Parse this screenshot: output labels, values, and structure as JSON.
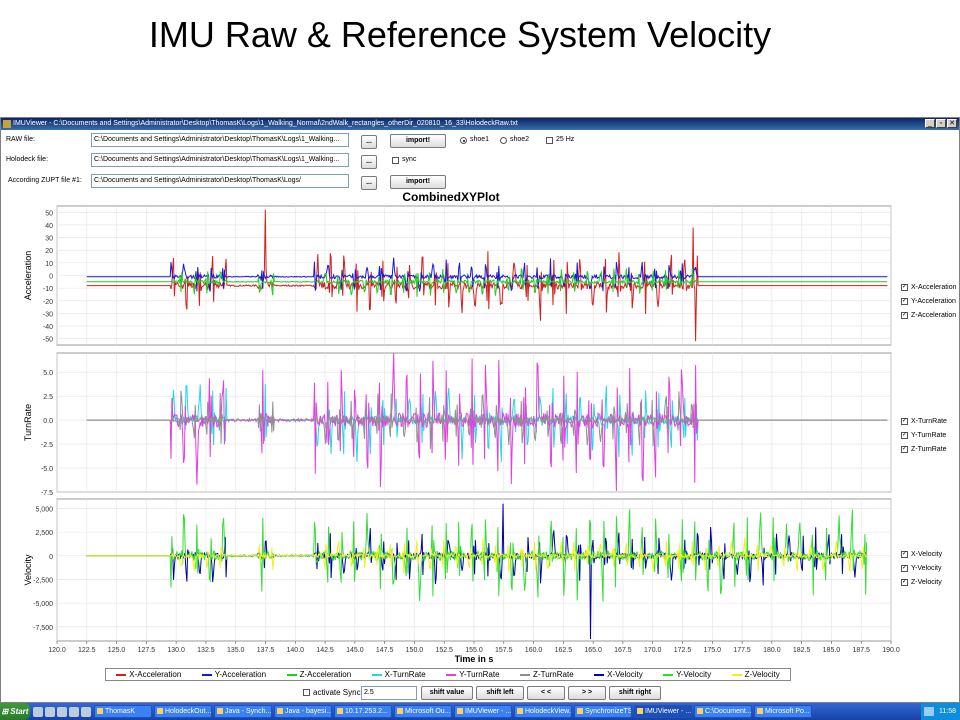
{
  "slide": {
    "title": "IMU Raw & Reference System Velocity"
  },
  "window": {
    "title": "IMUViewer - C:\\Documents and Settings\\Administrator\\Desktop\\ThomasK\\Logs\\1_Walking_Normal\\2ndWalk_rectangles_otherDir_020810_16_33\\HolodeckRaw.txt",
    "buttons": {
      "minimize": "_",
      "restore": "▫",
      "close": "✕"
    }
  },
  "controls": {
    "raw_label": "RAW file:",
    "raw_path": "C:\\Documents and Settings\\Administrator\\Desktop\\ThomasK\\Logs\\1_Walking...",
    "holodeck_label": "Holodeck file:",
    "holodeck_path": "C:\\Documents and Settings\\Administrator\\Desktop\\ThomasK\\Logs\\1_Walking...",
    "zupt_label": "According ZUPT file #1:",
    "zupt_path": "C:\\Documents and Settings\\Administrator\\Desktop\\ThomasK\\Logs/",
    "browse_label": "...",
    "import_label": "import!",
    "shoe1_label": "shoe1",
    "shoe2_label": "shoe2",
    "hz_label": "25 Hz",
    "sync_label": "sync"
  },
  "plot": {
    "title": "CombinedXYPlot",
    "xlabel": "Time in s",
    "x_ticks": [
      "120.0",
      "122.5",
      "125.0",
      "127.5",
      "130.0",
      "132.5",
      "135.0",
      "137.5",
      "140.0",
      "142.5",
      "145.0",
      "147.5",
      "150.0",
      "152.5",
      "155.0",
      "157.5",
      "160.0",
      "162.5",
      "165.0",
      "167.5",
      "170.0",
      "172.5",
      "175.0",
      "177.5",
      "180.0",
      "182.5",
      "185.0",
      "187.5",
      "190.0"
    ],
    "side_legends": [
      [
        "X-Acceleration",
        "Y-Acceleration",
        "Z-Acceleration"
      ],
      [
        "X-TurnRate",
        "Y-TurnRate",
        "Z-TurnRate"
      ],
      [
        "X-Velocity",
        "Y-Velocity",
        "Z-Velocity"
      ]
    ]
  },
  "chart_data": [
    {
      "type": "line",
      "ylabel": "Acceleration",
      "ylim": [
        -55,
        55
      ],
      "yticks": [
        "50",
        "40",
        "30",
        "20",
        "10",
        "0",
        "-10",
        "-20",
        "-30",
        "-40",
        "-50"
      ],
      "xlim": [
        120,
        190
      ],
      "series": [
        {
          "name": "X-Acceleration",
          "color": "#d22020",
          "baseline": -8,
          "amp": 22
        },
        {
          "name": "Y-Acceleration",
          "color": "#1a1acc",
          "baseline": -1,
          "amp": 12
        },
        {
          "name": "Z-Acceleration",
          "color": "#22cc22",
          "baseline": -5,
          "amp": 10
        }
      ],
      "active_range": [
        129.5,
        173.8
      ],
      "spikes": [
        {
          "x": 137.5,
          "y": 52
        },
        {
          "x": 173.4,
          "y": 38
        },
        {
          "x": 173.6,
          "y": -52
        }
      ]
    },
    {
      "type": "line",
      "ylabel": "TurnRate",
      "ylim": [
        -7.5,
        7.0
      ],
      "yticks": [
        "5.0",
        "2.5",
        "0.0",
        "-2.5",
        "-5.0",
        "-7.5"
      ],
      "xlim": [
        120,
        190
      ],
      "series": [
        {
          "name": "X-TurnRate",
          "color": "#20d8e0",
          "baseline": 0,
          "amp": 3.5
        },
        {
          "name": "Y-TurnRate",
          "color": "#e040e0",
          "baseline": 0,
          "amp": 6
        },
        {
          "name": "Z-TurnRate",
          "color": "#909090",
          "baseline": 0,
          "amp": 2.5
        }
      ],
      "active_range": [
        129.5,
        173.8
      ]
    },
    {
      "type": "line",
      "ylabel": "Velocity",
      "ylim": [
        -9000,
        6000
      ],
      "yticks": [
        "5,000",
        "2,500",
        "0",
        "-2,500",
        "-5,000",
        "-7,500"
      ],
      "xlim": [
        120,
        190
      ],
      "series": [
        {
          "name": "X-Velocity",
          "color": "#0000aa",
          "baseline": 0,
          "amp": 2500
        },
        {
          "name": "Y-Velocity",
          "color": "#33dd33",
          "baseline": 0,
          "amp": 4000
        },
        {
          "name": "Z-Velocity",
          "color": "#f0f020",
          "baseline": 0,
          "amp": 1500
        }
      ],
      "active_range": [
        129.5,
        188
      ],
      "spikes": [
        {
          "x": 164.8,
          "y": -8800
        },
        {
          "x": 157.4,
          "y": 5500
        }
      ]
    }
  ],
  "bottom_legend": [
    {
      "name": "X-Acceleration",
      "color": "#d22020"
    },
    {
      "name": "Y-Acceleration",
      "color": "#1a1acc"
    },
    {
      "name": "Z-Acceleration",
      "color": "#22cc22"
    },
    {
      "name": "X-TurnRate",
      "color": "#20d8e0"
    },
    {
      "name": "Y-TurnRate",
      "color": "#e040e0"
    },
    {
      "name": "Z-TurnRate",
      "color": "#909090"
    },
    {
      "name": "X-Velocity",
      "color": "#0000aa"
    },
    {
      "name": "Y-Velocity",
      "color": "#33dd33"
    },
    {
      "name": "Z-Velocity",
      "color": "#f0f020"
    }
  ],
  "sync": {
    "activate_label": "activate Sync",
    "value": "2.5",
    "shift_value_label": "shift value",
    "shift_left_label": "shift left",
    "prev_label": "< <",
    "next_label": "> >",
    "shift_right_label": "shift right"
  },
  "taskbar": {
    "start_label": "Start",
    "tasks": [
      "ThomasK",
      "HolodeckOut...",
      "Java - Synch...",
      "Java - bayesi...",
      "10.17.253.2...",
      "Microsoft Ou...",
      "IMUViewer - ...",
      "HolodeckView...",
      "SynchronizeTS",
      "IMUViewer - ...",
      "C:\\Document...",
      "Microsoft Po..."
    ],
    "active_task_index": 9,
    "clock": "11:58"
  }
}
